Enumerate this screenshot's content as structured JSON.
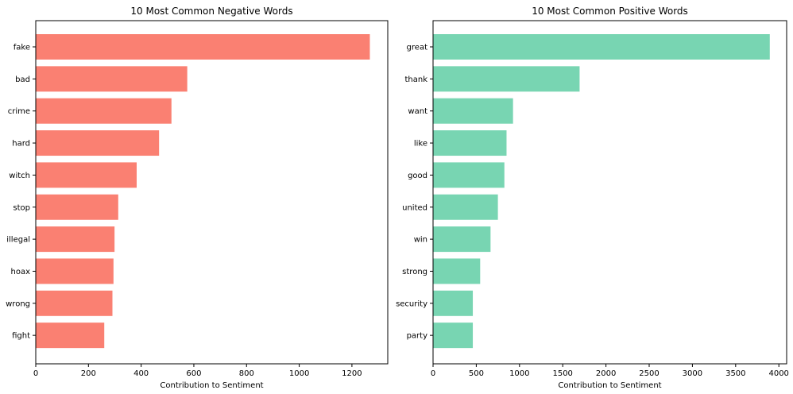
{
  "chart_data": [
    {
      "type": "bar",
      "orientation": "horizontal",
      "title": "10 Most Common Negative Words",
      "xlabel": "Contribution to Sentiment",
      "ylabel": "",
      "xlim": [
        0,
        1336
      ],
      "xticks": [
        0,
        200,
        400,
        600,
        800,
        1000,
        1200
      ],
      "color": "#fa8072",
      "categories": [
        "fake",
        "bad",
        "crime",
        "hard",
        "witch",
        "stop",
        "illegal",
        "hoax",
        "wrong",
        "fight"
      ],
      "values": [
        1268,
        575,
        515,
        468,
        383,
        313,
        299,
        295,
        291,
        260
      ],
      "grid": false,
      "legend": "none"
    },
    {
      "type": "bar",
      "orientation": "horizontal",
      "title": "10 Most Common Positive Words",
      "xlabel": "Contribution to Sentiment",
      "ylabel": "",
      "xlim": [
        0,
        4090
      ],
      "xticks": [
        0,
        500,
        1000,
        1500,
        2000,
        2500,
        3000,
        3500,
        4000
      ],
      "color": "#78d5b2",
      "categories": [
        "great",
        "thank",
        "want",
        "like",
        "good",
        "united",
        "win",
        "strong",
        "security",
        "party"
      ],
      "values": [
        3895,
        1695,
        925,
        850,
        825,
        750,
        665,
        545,
        460,
        460
      ],
      "grid": false,
      "legend": "none"
    }
  ]
}
